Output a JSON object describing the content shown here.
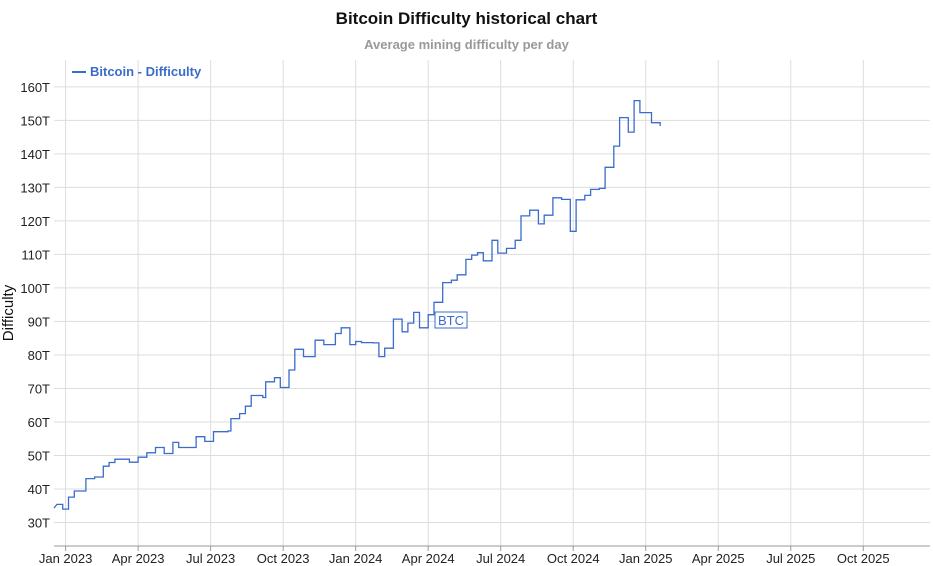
{
  "chart_data": {
    "type": "line",
    "title": "Bitcoin Difficulty historical chart",
    "subtitle": "Average mining difficulty per day",
    "ylabel": "Difficulty",
    "xlabel": "",
    "legend": {
      "label": "Bitcoin - Difficulty",
      "placement": "top-left"
    },
    "annotation": {
      "label": "BTC",
      "x": 2024.28,
      "y": 87
    },
    "xlim": [
      2022.96,
      2025.98
    ],
    "ylim": [
      23,
      168
    ],
    "grid": true,
    "x_ticks": [
      {
        "label": "Jan 2023",
        "x": 2023.0
      },
      {
        "label": "Apr 2023",
        "x": 2023.25
      },
      {
        "label": "Jul 2023",
        "x": 2023.5
      },
      {
        "label": "Oct 2023",
        "x": 2023.75
      },
      {
        "label": "Jan 2024",
        "x": 2024.0
      },
      {
        "label": "Apr 2024",
        "x": 2024.25
      },
      {
        "label": "Jul 2024",
        "x": 2024.5
      },
      {
        "label": "Oct 2024",
        "x": 2024.75
      },
      {
        "label": "Jan 2025",
        "x": 2025.0
      },
      {
        "label": "Apr 2025",
        "x": 2025.25
      },
      {
        "label": "Jul 2025",
        "x": 2025.5
      },
      {
        "label": "Oct 2025",
        "x": 2025.75
      }
    ],
    "y_ticks": [
      {
        "label": "30T",
        "y": 30
      },
      {
        "label": "40T",
        "y": 40
      },
      {
        "label": "50T",
        "y": 50
      },
      {
        "label": "60T",
        "y": 60
      },
      {
        "label": "70T",
        "y": 70
      },
      {
        "label": "80T",
        "y": 80
      },
      {
        "label": "90T",
        "y": 90
      },
      {
        "label": "100T",
        "y": 100
      },
      {
        "label": "110T",
        "y": 110
      },
      {
        "label": "120T",
        "y": 120
      },
      {
        "label": "130T",
        "y": 130
      },
      {
        "label": "140T",
        "y": 140
      },
      {
        "label": "150T",
        "y": 150
      },
      {
        "label": "160T",
        "y": 160
      }
    ],
    "series": [
      {
        "name": "Bitcoin - Difficulty",
        "color": "#3a6ccc",
        "unit": "T",
        "points": [
          [
            2022.96,
            34.3
          ],
          [
            2022.97,
            35.4
          ],
          [
            2022.99,
            35.4
          ],
          [
            2022.99,
            34.0
          ],
          [
            2023.01,
            34.0
          ],
          [
            2023.01,
            37.6
          ],
          [
            2023.03,
            37.6
          ],
          [
            2023.03,
            39.4
          ],
          [
            2023.07,
            39.4
          ],
          [
            2023.07,
            43.1
          ],
          [
            2023.1,
            43.1
          ],
          [
            2023.1,
            43.6
          ],
          [
            2023.13,
            43.6
          ],
          [
            2023.13,
            46.8
          ],
          [
            2023.15,
            46.8
          ],
          [
            2023.15,
            47.9
          ],
          [
            2023.17,
            47.9
          ],
          [
            2023.17,
            48.9
          ],
          [
            2023.22,
            48.9
          ],
          [
            2023.22,
            48.0
          ],
          [
            2023.25,
            48.0
          ],
          [
            2023.25,
            49.5
          ],
          [
            2023.28,
            49.5
          ],
          [
            2023.28,
            50.8
          ],
          [
            2023.31,
            50.8
          ],
          [
            2023.31,
            52.4
          ],
          [
            2023.34,
            52.4
          ],
          [
            2023.34,
            50.6
          ],
          [
            2023.37,
            50.6
          ],
          [
            2023.37,
            53.9
          ],
          [
            2023.39,
            53.9
          ],
          [
            2023.39,
            52.4
          ],
          [
            2023.45,
            52.4
          ],
          [
            2023.45,
            55.6
          ],
          [
            2023.48,
            55.6
          ],
          [
            2023.48,
            54.2
          ],
          [
            2023.51,
            54.2
          ],
          [
            2023.51,
            57.1
          ],
          [
            2023.56,
            57.1
          ],
          [
            2023.56,
            57.3
          ],
          [
            2023.57,
            57.3
          ],
          [
            2023.57,
            61.0
          ],
          [
            2023.6,
            61.0
          ],
          [
            2023.6,
            62.5
          ],
          [
            2023.62,
            62.5
          ],
          [
            2023.62,
            64.7
          ],
          [
            2023.64,
            64.7
          ],
          [
            2023.64,
            67.9
          ],
          [
            2023.68,
            67.9
          ],
          [
            2023.68,
            67.3
          ],
          [
            2023.69,
            67.3
          ],
          [
            2023.69,
            72.0
          ],
          [
            2023.72,
            72.0
          ],
          [
            2023.72,
            73.2
          ],
          [
            2023.74,
            73.2
          ],
          [
            2023.74,
            70.3
          ],
          [
            2023.77,
            70.3
          ],
          [
            2023.77,
            75.5
          ],
          [
            2023.79,
            75.5
          ],
          [
            2023.79,
            81.7
          ],
          [
            2023.82,
            81.7
          ],
          [
            2023.82,
            79.5
          ],
          [
            2023.86,
            79.5
          ],
          [
            2023.86,
            84.4
          ],
          [
            2023.89,
            84.4
          ],
          [
            2023.89,
            83.1
          ],
          [
            2023.93,
            83.1
          ],
          [
            2023.93,
            86.4
          ],
          [
            2023.95,
            86.4
          ],
          [
            2023.95,
            88.1
          ],
          [
            2023.98,
            88.1
          ],
          [
            2023.98,
            83.1
          ],
          [
            2024.0,
            83.1
          ],
          [
            2024.0,
            84.0
          ],
          [
            2024.02,
            84.0
          ],
          [
            2024.02,
            83.7
          ],
          [
            2024.06,
            83.7
          ],
          [
            2024.06,
            83.6
          ],
          [
            2024.08,
            83.6
          ],
          [
            2024.08,
            79.5
          ],
          [
            2024.1,
            79.5
          ],
          [
            2024.1,
            79.7
          ],
          [
            2024.1,
            79.7
          ],
          [
            2024.1,
            82.0
          ],
          [
            2024.13,
            82.0
          ],
          [
            2024.13,
            90.7
          ],
          [
            2024.16,
            90.7
          ],
          [
            2024.16,
            86.9
          ],
          [
            2024.18,
            86.9
          ],
          [
            2024.18,
            89.5
          ],
          [
            2024.2,
            89.5
          ],
          [
            2024.2,
            92.7
          ],
          [
            2024.22,
            92.7
          ],
          [
            2024.22,
            88.1
          ],
          [
            2024.25,
            88.1
          ],
          [
            2024.25,
            92.0
          ],
          [
            2024.27,
            92.0
          ],
          [
            2024.27,
            95.7
          ],
          [
            2024.3,
            95.7
          ],
          [
            2024.3,
            101.6
          ],
          [
            2024.33,
            101.6
          ],
          [
            2024.33,
            102.3
          ],
          [
            2024.35,
            102.3
          ],
          [
            2024.35,
            103.9
          ],
          [
            2024.38,
            103.9
          ],
          [
            2024.38,
            108.5
          ],
          [
            2024.4,
            108.5
          ],
          [
            2024.4,
            109.8
          ],
          [
            2024.42,
            109.8
          ],
          [
            2024.42,
            110.5
          ],
          [
            2024.44,
            110.5
          ],
          [
            2024.44,
            108.1
          ],
          [
            2024.47,
            108.1
          ],
          [
            2024.47,
            114.2
          ],
          [
            2024.49,
            114.2
          ],
          [
            2024.49,
            110.4
          ],
          [
            2024.52,
            110.4
          ],
          [
            2024.52,
            111.8
          ],
          [
            2024.55,
            111.8
          ],
          [
            2024.55,
            114.2
          ],
          [
            2024.57,
            114.2
          ],
          [
            2024.57,
            121.5
          ],
          [
            2024.6,
            121.5
          ],
          [
            2024.6,
            123.2
          ],
          [
            2024.63,
            123.2
          ],
          [
            2024.63,
            119.1
          ],
          [
            2024.65,
            119.1
          ],
          [
            2024.65,
            121.7
          ],
          [
            2024.68,
            121.7
          ],
          [
            2024.68,
            126.9
          ],
          [
            2024.71,
            126.9
          ],
          [
            2024.71,
            126.4
          ],
          [
            2024.74,
            126.4
          ],
          [
            2024.74,
            116.9
          ],
          [
            2024.76,
            116.9
          ],
          [
            2024.76,
            126.3
          ],
          [
            2024.79,
            126.3
          ],
          [
            2024.79,
            127.6
          ],
          [
            2024.81,
            127.6
          ],
          [
            2024.81,
            129.4
          ],
          [
            2024.84,
            129.4
          ],
          [
            2024.84,
            129.7
          ],
          [
            2024.86,
            129.7
          ],
          [
            2024.86,
            136.0
          ],
          [
            2024.89,
            136.0
          ],
          [
            2024.89,
            142.3
          ],
          [
            2024.91,
            142.3
          ],
          [
            2024.91,
            150.8
          ],
          [
            2024.94,
            150.8
          ],
          [
            2024.94,
            146.5
          ],
          [
            2024.96,
            146.5
          ],
          [
            2024.96,
            155.9
          ],
          [
            2024.98,
            155.9
          ],
          [
            2024.98,
            152.3
          ],
          [
            2025.02,
            152.3
          ],
          [
            2025.02,
            149.3
          ],
          [
            2025.05,
            149.3
          ],
          [
            2025.05,
            148.3
          ]
        ]
      }
    ]
  }
}
